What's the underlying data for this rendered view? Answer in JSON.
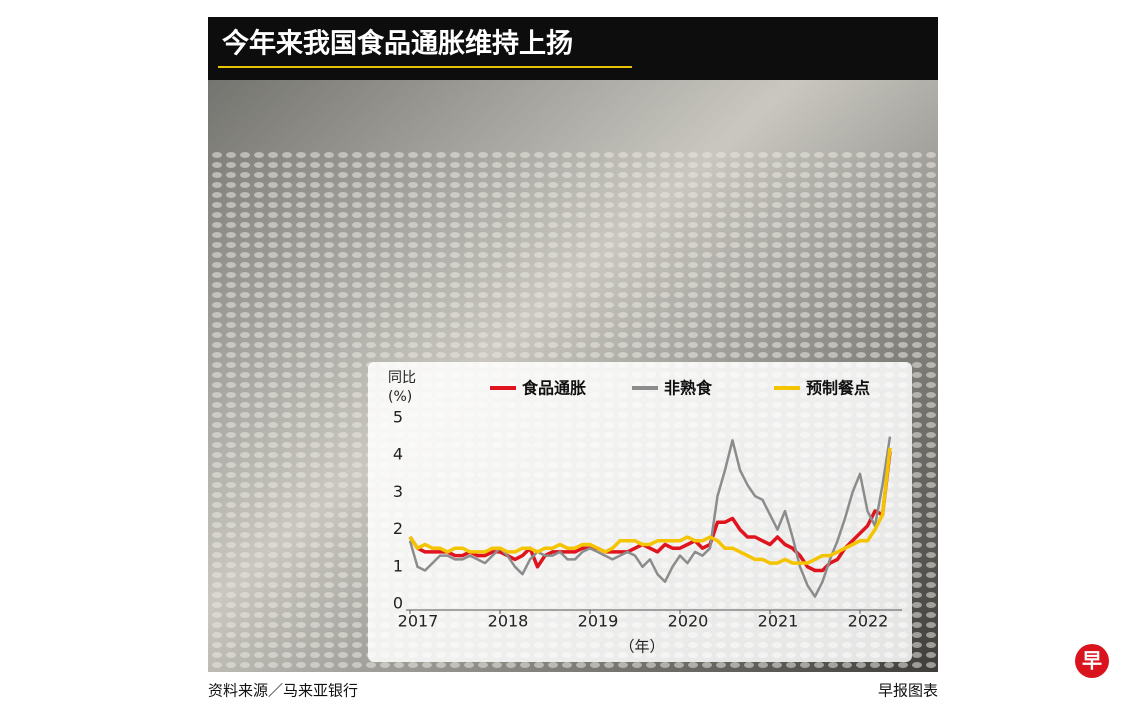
{
  "header": {
    "title": "今年来我国食品通胀维持上扬"
  },
  "chart_data": {
    "type": "line",
    "y_label": "同比",
    "y_unit": "(%)",
    "x_label": "（年）",
    "categories": [
      "2017",
      null,
      null,
      null,
      null,
      null,
      null,
      null,
      null,
      null,
      null,
      null,
      "2018",
      null,
      null,
      null,
      null,
      null,
      null,
      null,
      null,
      null,
      null,
      null,
      "2019",
      null,
      null,
      null,
      null,
      null,
      null,
      null,
      null,
      null,
      null,
      null,
      "2020",
      null,
      null,
      null,
      null,
      null,
      null,
      null,
      null,
      null,
      null,
      null,
      "2021",
      null,
      null,
      null,
      null,
      null,
      null,
      null,
      null,
      null,
      null,
      null,
      "2022",
      null,
      null,
      null,
      null
    ],
    "series": [
      {
        "name": "食品通胀",
        "color": "#e0141e",
        "values": [
          1.8,
          1.5,
          1.4,
          1.4,
          1.4,
          1.4,
          1.3,
          1.3,
          1.4,
          1.3,
          1.3,
          1.4,
          1.4,
          1.3,
          1.2,
          1.3,
          1.5,
          1.0,
          1.3,
          1.4,
          1.4,
          1.4,
          1.4,
          1.5,
          1.5,
          1.5,
          1.4,
          1.4,
          1.4,
          1.4,
          1.5,
          1.6,
          1.5,
          1.4,
          1.6,
          1.5,
          1.5,
          1.6,
          1.7,
          1.5,
          1.6,
          2.2,
          2.2,
          2.3,
          2.0,
          1.8,
          1.8,
          1.7,
          1.6,
          1.8,
          1.6,
          1.5,
          1.3,
          1.0,
          0.9,
          0.9,
          1.1,
          1.2,
          1.5,
          1.7,
          1.9,
          2.1,
          2.5,
          2.4,
          4.1
        ]
      },
      {
        "name": "非熟食",
        "color": "#8c8c8c",
        "values": [
          1.7,
          1.0,
          0.9,
          1.1,
          1.3,
          1.3,
          1.2,
          1.2,
          1.3,
          1.2,
          1.1,
          1.3,
          1.5,
          1.3,
          1.0,
          0.8,
          1.2,
          1.4,
          1.3,
          1.3,
          1.4,
          1.2,
          1.2,
          1.4,
          1.5,
          1.4,
          1.3,
          1.2,
          1.3,
          1.4,
          1.3,
          1.0,
          1.2,
          0.8,
          0.6,
          1.0,
          1.3,
          1.1,
          1.4,
          1.3,
          1.5,
          2.9,
          3.6,
          4.4,
          3.6,
          3.2,
          2.9,
          2.8,
          2.4,
          2.0,
          2.5,
          1.8,
          1.0,
          0.5,
          0.2,
          0.6,
          1.2,
          1.7,
          2.3,
          3.0,
          3.5,
          2.5,
          2.1,
          3.2,
          4.5
        ]
      },
      {
        "name": "预制餐点",
        "color": "#f5c400",
        "values": [
          1.8,
          1.5,
          1.6,
          1.5,
          1.5,
          1.4,
          1.5,
          1.5,
          1.4,
          1.4,
          1.4,
          1.5,
          1.5,
          1.4,
          1.4,
          1.5,
          1.5,
          1.4,
          1.5,
          1.5,
          1.6,
          1.5,
          1.5,
          1.6,
          1.6,
          1.5,
          1.4,
          1.5,
          1.7,
          1.7,
          1.7,
          1.6,
          1.6,
          1.7,
          1.7,
          1.7,
          1.7,
          1.8,
          1.7,
          1.7,
          1.8,
          1.7,
          1.5,
          1.5,
          1.4,
          1.3,
          1.2,
          1.2,
          1.1,
          1.1,
          1.2,
          1.1,
          1.1,
          1.1,
          1.2,
          1.3,
          1.3,
          1.4,
          1.5,
          1.6,
          1.7,
          1.7,
          2.0,
          2.4,
          4.2
        ]
      }
    ],
    "ylim": [
      0,
      5
    ],
    "yticks": [
      0,
      1,
      2,
      3,
      4,
      5
    ],
    "grid": false
  },
  "footer": {
    "source": "资料来源／马来亚银行",
    "credit": "早报图表"
  },
  "logo": "早"
}
